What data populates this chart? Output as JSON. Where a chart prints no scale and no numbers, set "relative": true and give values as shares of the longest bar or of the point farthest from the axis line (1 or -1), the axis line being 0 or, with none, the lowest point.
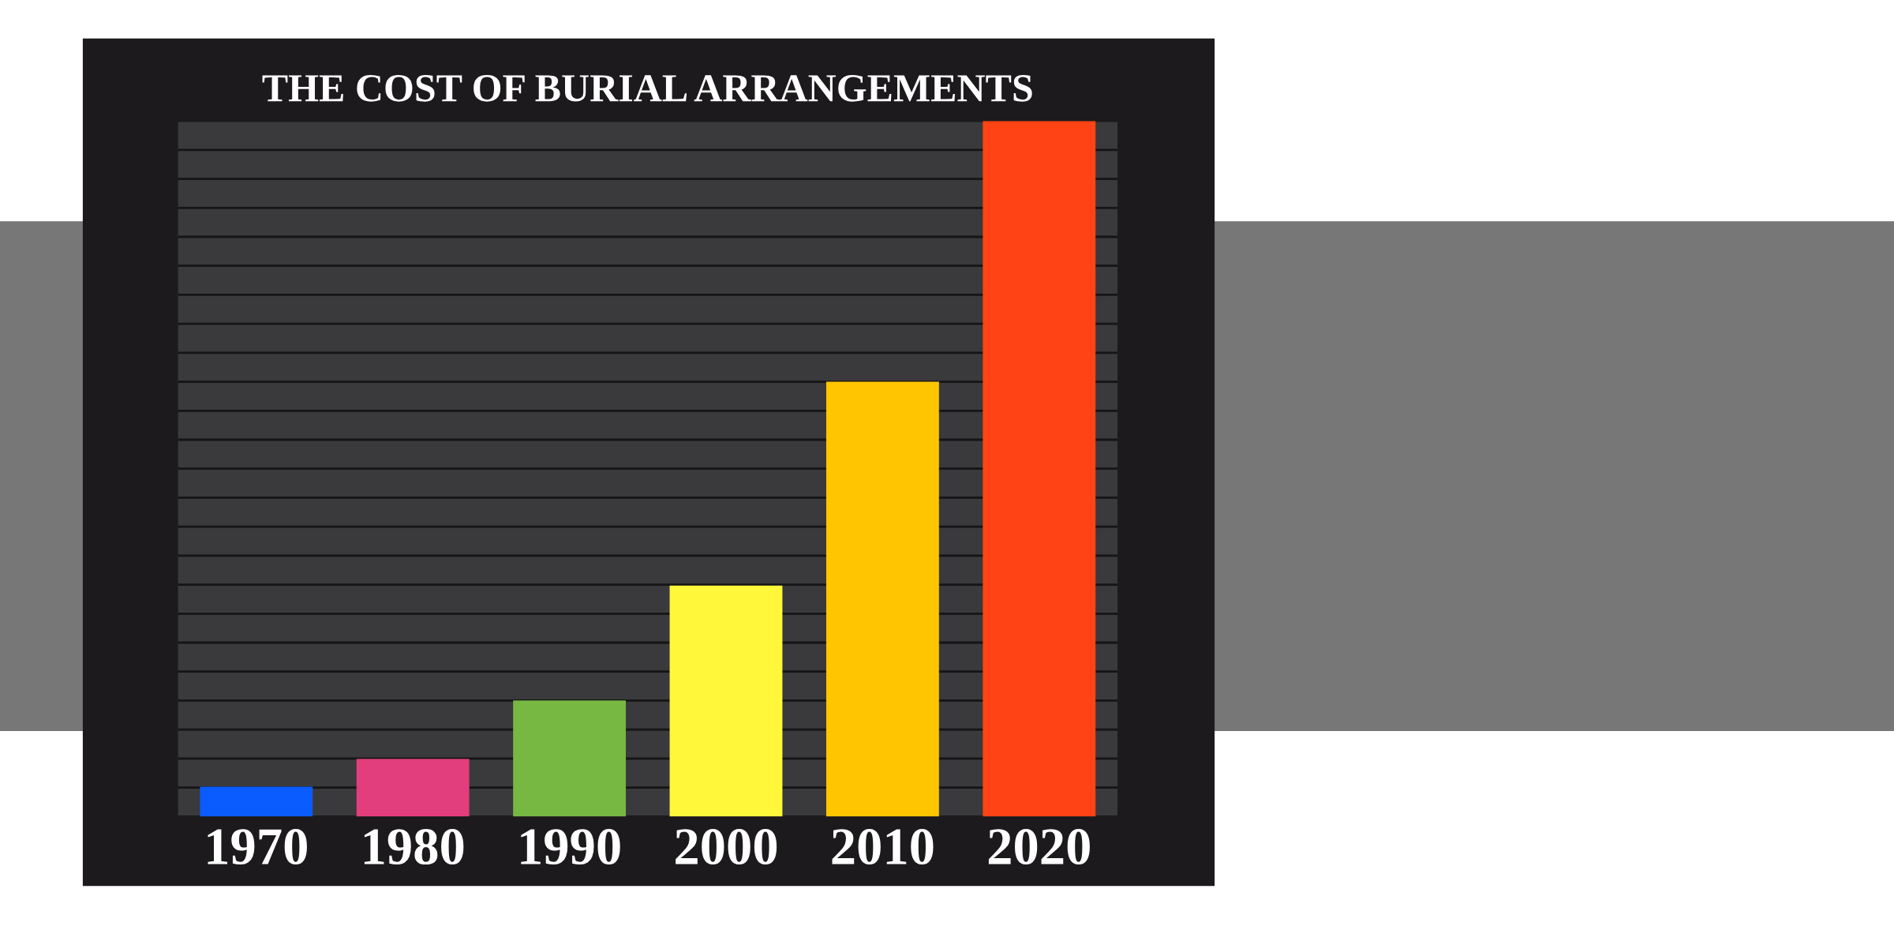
{
  "chart_data": {
    "type": "bar",
    "title": "THE COST OF BURIAL ARRANGEMENTS",
    "categories": [
      "1970",
      "1980",
      "1990",
      "2000",
      "2010",
      "2020"
    ],
    "values": [
      0.043,
      0.083,
      0.167,
      0.332,
      0.625,
      1
    ],
    "colors": [
      "#0a5cff",
      "#e23d7c",
      "#77b843",
      "#fff83a",
      "#ffc600",
      "#ff4314"
    ],
    "relative": true,
    "grid": "y"
  }
}
